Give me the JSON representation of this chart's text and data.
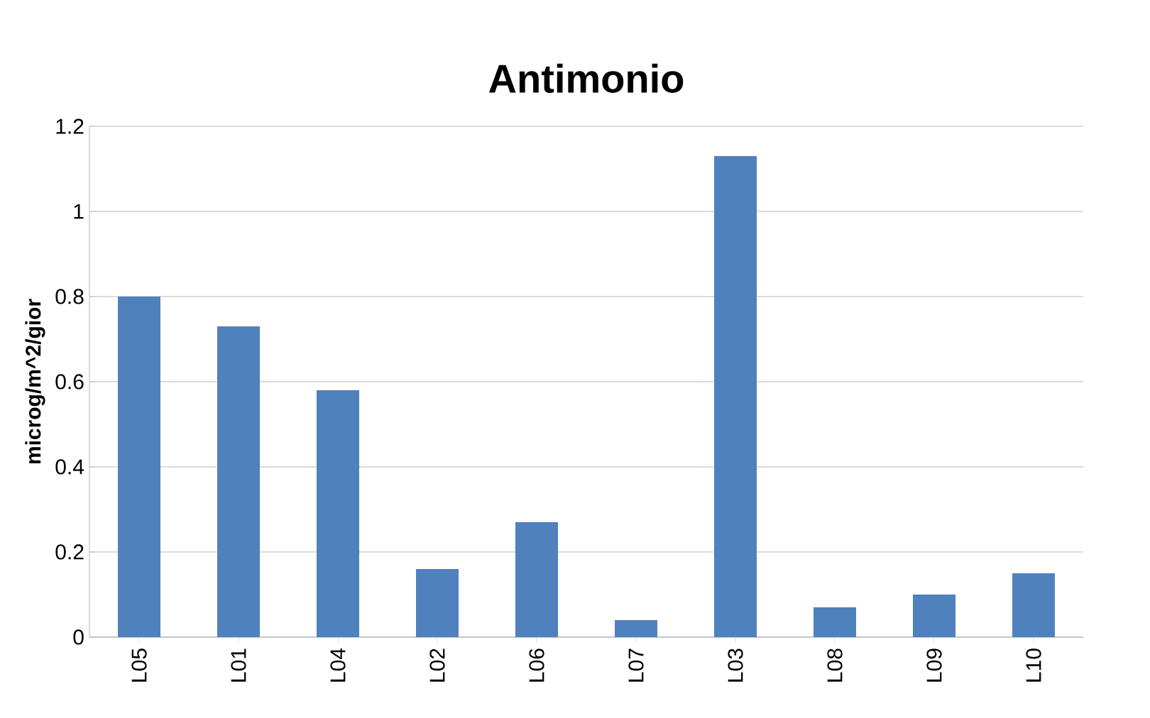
{
  "chart_data": {
    "type": "bar",
    "title": "Antimonio",
    "ylabel": "microg/m^2/gior",
    "categories": [
      "L05",
      "L01",
      "L04",
      "L02",
      "L06",
      "L07",
      "L03",
      "L08",
      "L09",
      "L10"
    ],
    "values": [
      0.8,
      0.73,
      0.58,
      0.16,
      0.27,
      0.04,
      1.13,
      0.07,
      0.1,
      0.15
    ],
    "color": "#4f81bd",
    "ylim": [
      0,
      1.2
    ],
    "yticks": [
      0,
      0.2,
      0.4,
      0.6,
      0.8,
      1,
      1.2
    ],
    "grid": "y"
  }
}
